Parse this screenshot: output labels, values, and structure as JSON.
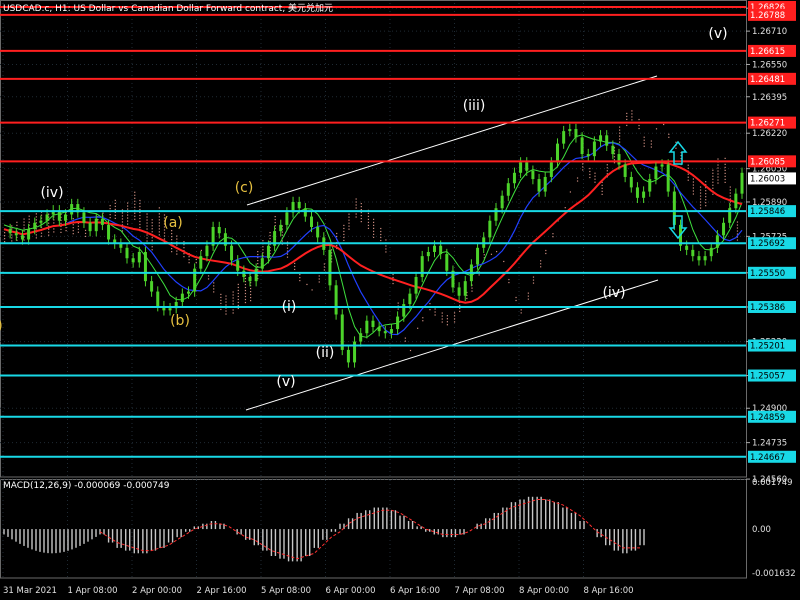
{
  "header": {
    "symbol_line": "USDCAD.c, H1:  US Dollar vs Canadian Dollar Forward contract, 美元兑加元"
  },
  "colors": {
    "background": "#000000",
    "grid": "#1f2a33",
    "candle": "#4cd32a",
    "red_level": "#ff1f1f",
    "cyan_level": "#18d9e6",
    "macd_hist": "#c8c8c8",
    "macd_signal": "#ff3030",
    "channel": "#ffffff",
    "ma_red": "#ff2020",
    "ma_blue": "#2040ff",
    "ma_green": "#3ee03e",
    "cloud": "#ffb0a0",
    "label_white": "#ffffff",
    "label_yellow": "#e6c040"
  },
  "chart_data": [
    {
      "type": "candlestick",
      "title": "USDCAD.c, H1:  US Dollar vs Canadian Dollar Forward contract, 美元兑加元",
      "y_ticks": [
        "1.26820",
        "1.26710",
        "1.26550",
        "1.26395",
        "1.26220",
        "1.26050",
        "1.25890",
        "1.25725",
        "1.25550",
        "1.25386",
        "1.25220",
        "1.25057",
        "1.24900",
        "1.24735",
        "1.24560"
      ],
      "y_tick_values": [
        1.2682,
        1.2671,
        1.2655,
        1.26395,
        1.2622,
        1.2605,
        1.2589,
        1.25725,
        1.2555,
        1.25386,
        1.2522,
        1.25057,
        1.249,
        1.24735,
        1.2456
      ],
      "price_labels": [
        {
          "text": "1.26826",
          "color": "red"
        },
        {
          "text": "1.26788",
          "color": "red"
        },
        {
          "text": "1.26615",
          "color": "red"
        },
        {
          "text": "1.26481",
          "color": "red"
        },
        {
          "text": "1.26271",
          "color": "red"
        },
        {
          "text": "1.26085",
          "color": "red"
        },
        {
          "text": "1.26003",
          "color": "white"
        },
        {
          "text": "1.25846",
          "color": "cyan"
        },
        {
          "text": "1.25692",
          "color": "cyan"
        },
        {
          "text": "1.25550",
          "color": "cyan"
        },
        {
          "text": "1.25386",
          "color": "cyan"
        },
        {
          "text": "1.25201",
          "color": "cyan"
        },
        {
          "text": "1.25057",
          "color": "cyan"
        },
        {
          "text": "1.24859",
          "color": "cyan"
        },
        {
          "text": "1.24667",
          "color": "cyan"
        }
      ],
      "red_levels": [
        1.26826,
        1.26788,
        1.26615,
        1.26481,
        1.26271,
        1.26085
      ],
      "cyan_levels": [
        1.25846,
        1.25692,
        1.2555,
        1.25386,
        1.25201,
        1.25057,
        1.24859,
        1.24667
      ],
      "last_price": 1.26003,
      "x_ticks": [
        "31 Mar 2021",
        "1 Apr 08:00",
        "2 Apr 00:00",
        "2 Apr 16:00",
        "5 Apr 08:00",
        "6 Apr 00:00",
        "6 Apr 16:00",
        "7 Apr 08:00",
        "8 Apr 00:00",
        "8 Apr 16:00"
      ],
      "wave_labels": [
        {
          "text": "(iv)",
          "color": "white"
        },
        {
          "text": "(c)",
          "color": "yellow"
        },
        {
          "text": "(a)",
          "color": "yellow"
        },
        {
          "text": "(b)",
          "color": "yellow"
        },
        {
          "text": "(i)",
          "color": "white"
        },
        {
          "text": "(ii)",
          "color": "white"
        },
        {
          "text": "(v)",
          "color": "white"
        },
        {
          "text": "(iii)",
          "color": "white"
        },
        {
          "text": "(iv)",
          "color": "white"
        },
        {
          "text": "(v)",
          "color": "white"
        },
        {
          "text": ")",
          "color": "yellow"
        }
      ],
      "arrows": [
        "up",
        "down"
      ],
      "close_path": [
        1.2576,
        1.2574,
        1.2573,
        1.2571,
        1.2576,
        1.2579,
        1.258,
        1.2583,
        1.2585,
        1.258,
        1.2583,
        1.2588,
        1.2584,
        1.2579,
        1.2575,
        1.2581,
        1.2578,
        1.2571,
        1.2569,
        1.2567,
        1.2562,
        1.256,
        1.2565,
        1.2551,
        1.2546,
        1.2539,
        1.2537,
        1.2538,
        1.2541,
        1.2545,
        1.2546,
        1.2557,
        1.2563,
        1.2568,
        1.2577,
        1.2574,
        1.2568,
        1.2561,
        1.2556,
        1.2553,
        1.2551,
        1.2557,
        1.2562,
        1.2568,
        1.2575,
        1.2578,
        1.2584,
        1.2589,
        1.2586,
        1.2582,
        1.2577,
        1.2572,
        1.2566,
        1.2549,
        1.2535,
        1.2518,
        1.2512,
        1.2522,
        1.2526,
        1.2532,
        1.2529,
        1.2527,
        1.2526,
        1.2528,
        1.2534,
        1.254,
        1.2545,
        1.2553,
        1.2563,
        1.2565,
        1.2568,
        1.2564,
        1.2556,
        1.2548,
        1.2544,
        1.2551,
        1.2559,
        1.2567,
        1.2572,
        1.258,
        1.2586,
        1.2592,
        1.2598,
        1.2603,
        1.2608,
        1.2604,
        1.26,
        1.2594,
        1.2601,
        1.2608,
        1.2617,
        1.2623,
        1.2624,
        1.262,
        1.2612,
        1.2611,
        1.2618,
        1.2621,
        1.2616,
        1.2612,
        1.2607,
        1.2601,
        1.2596,
        1.2591,
        1.2594,
        1.26,
        1.2606,
        1.2607,
        1.2594,
        1.2578,
        1.2568,
        1.2566,
        1.2563,
        1.2561,
        1.2563,
        1.2567,
        1.2573,
        1.2579,
        1.2586,
        1.2593,
        1.2603
      ]
    },
    {
      "type": "bar",
      "title": "MACD(12,26,9) -0.000069 -0.000749",
      "y_ticks": [
        "0.001749",
        "0.00",
        "-0.001632"
      ],
      "y_tick_values": [
        0.001749,
        0,
        -0.001632
      ],
      "ylim": [
        -0.001632,
        0.001749
      ],
      "series": [
        {
          "values": [
            -0.0002,
            -0.0005,
            -0.0007,
            -0.0008,
            -0.0009,
            -0.0009,
            -0.0008,
            -0.0007,
            -0.0005,
            -0.0003,
            -0.0001,
            0.0001,
            0.0002,
            0.0003,
            0.0002,
            0.0,
            -0.0002,
            -0.0004,
            -0.0006,
            -0.0008,
            -0.001,
            -0.0011,
            -0.0012,
            -0.0012,
            -0.001,
            -0.0007,
            -0.0004,
            -0.0001,
            0.0002,
            0.0004,
            0.0006,
            0.0007,
            0.0008,
            0.0008,
            0.0007,
            0.0005,
            0.0003,
            0.0001,
            -0.0001,
            -0.0002,
            -0.0003,
            -0.0003,
            -0.0002,
            0.0,
            0.0002,
            0.0004,
            0.0006,
            0.0008,
            0.001,
            0.0011,
            0.0012,
            0.0012,
            0.0011,
            0.001,
            0.0008,
            0.0006,
            0.0003,
            0.0,
            -0.0003,
            -0.0006,
            -0.0008,
            -0.0009,
            -0.0008,
            -0.0006
          ]
        },
        {
          "values": [
            -0.0001,
            -0.0003,
            -0.0005,
            -0.0006,
            -0.0007,
            -0.0008,
            -0.0008,
            -0.0007,
            -0.0006,
            -0.0004,
            -0.0002,
            0.0,
            0.0001,
            0.0002,
            0.0002,
            0.0001,
            -0.0001,
            -0.0003,
            -0.0004,
            -0.0006,
            -0.0008,
            -0.0009,
            -0.001,
            -0.0011,
            -0.001,
            -0.0009,
            -0.0006,
            -0.0003,
            -0.0001,
            0.0002,
            0.0004,
            0.0005,
            0.0006,
            0.0007,
            0.0007,
            0.0006,
            0.0004,
            0.0002,
            0.0,
            -0.0001,
            -0.0002,
            -0.0002,
            -0.0002,
            -0.0001,
            0.0001,
            0.0002,
            0.0004,
            0.0006,
            0.0008,
            0.0009,
            0.001,
            0.0011,
            0.0011,
            0.001,
            0.0009,
            0.0007,
            0.0005,
            0.0002,
            -0.0001,
            -0.0003,
            -0.0005,
            -0.0007,
            -0.0007,
            -0.0007
          ]
        }
      ]
    }
  ]
}
